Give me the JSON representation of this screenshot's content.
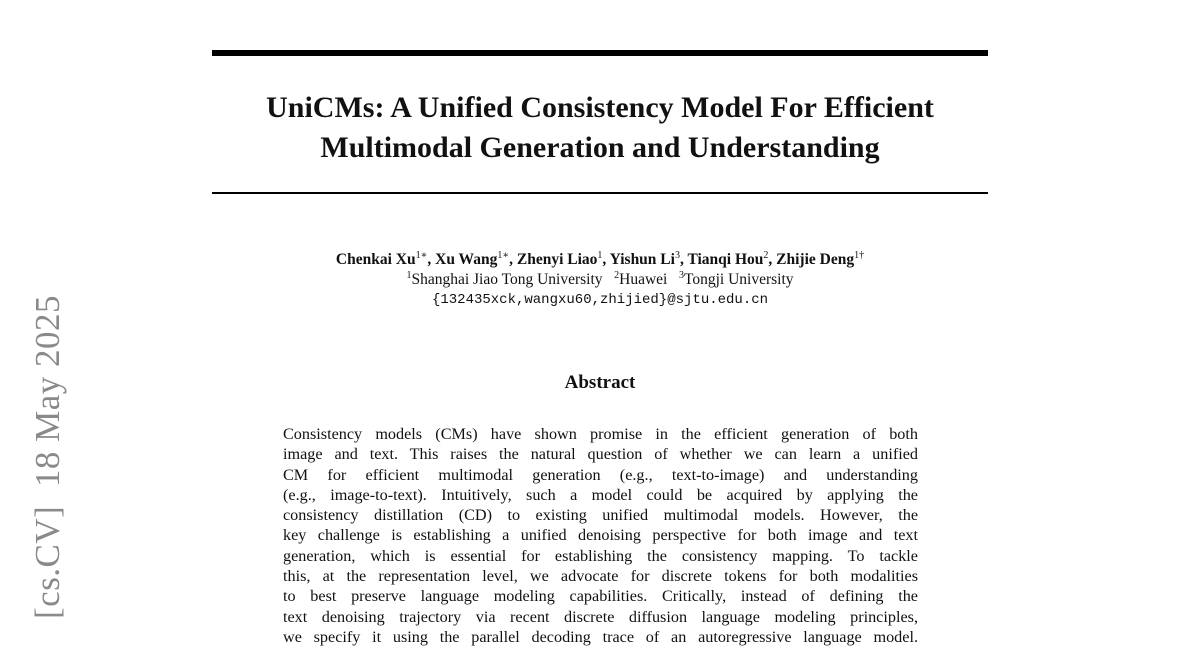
{
  "sidebar": {
    "arxiv_stamp": "[cs.CV]  18 May 2025"
  },
  "paper": {
    "title_line1": "UniCMs: A Unified Consistency Model For Efficient",
    "title_line2": "Multimodal Generation and Understanding",
    "authors": [
      {
        "name": "Chenkai Xu",
        "mark": "1∗"
      },
      {
        "name": "Xu Wang",
        "mark": "1∗"
      },
      {
        "name": "Zhenyi Liao",
        "mark": "1"
      },
      {
        "name": "Yishun Li",
        "mark": "3"
      },
      {
        "name": "Tianqi Hou",
        "mark": "2"
      },
      {
        "name": "Zhijie Deng",
        "mark": "1†"
      }
    ],
    "affiliations": [
      {
        "mark": "1",
        "name": "Shanghai Jiao Tong University"
      },
      {
        "mark": "2",
        "name": "Huawei"
      },
      {
        "mark": "3",
        "name": "Tongji University"
      }
    ],
    "email": "{132435xck,wangxu60,zhijied}@sjtu.edu.cn",
    "abstract_heading": "Abstract",
    "abstract_lines": [
      "Consistency models (CMs) have shown promise in the efficient generation of both",
      "image and text. This raises the natural question of whether we can learn a unified",
      "CM for efficient multimodal generation (e.g., text-to-image) and understanding",
      "(e.g., image-to-text). Intuitively, such a model could be acquired by applying the",
      "consistency distillation (CD) to existing unified multimodal models. However, the",
      "key challenge is establishing a unified denoising perspective for both image and text",
      "generation, which is essential for establishing the consistency mapping. To tackle",
      "this, at the representation level, we advocate for discrete tokens for both modalities",
      "to best preserve language modeling capabilities. Critically, instead of defining the",
      "text denoising trajectory via recent discrete diffusion language modeling principles,",
      "we specify it using the parallel decoding trace of an autoregressive language model."
    ]
  }
}
